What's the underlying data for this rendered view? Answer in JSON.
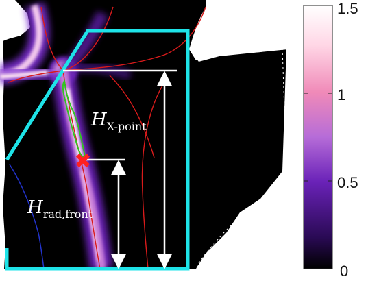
{
  "colorbar": {
    "ticks": [
      "1.5",
      "1",
      "0.5",
      "0"
    ],
    "tick_values": [
      1.5,
      1.0,
      0.5,
      0.0
    ],
    "range": [
      0,
      1.5
    ],
    "colormap": [
      "#000000",
      "#2a0a55",
      "#6a22b8",
      "#b66cd8",
      "#f08ab8",
      "#ffd7e6",
      "#ffffff"
    ]
  },
  "annotations": {
    "h_xpoint": {
      "base": "H",
      "sub": "X-point"
    },
    "h_radfront": {
      "base": "H",
      "sub": "rad,front"
    }
  },
  "colors": {
    "divertor_outline": "#1ee3e8",
    "separatrix": "#d81b1b",
    "front_contour": "#31c521",
    "target_contour": "#2233cc",
    "marker": "#ff2020",
    "measure": "#ffffff"
  },
  "marker": {
    "symbol": "✖"
  }
}
